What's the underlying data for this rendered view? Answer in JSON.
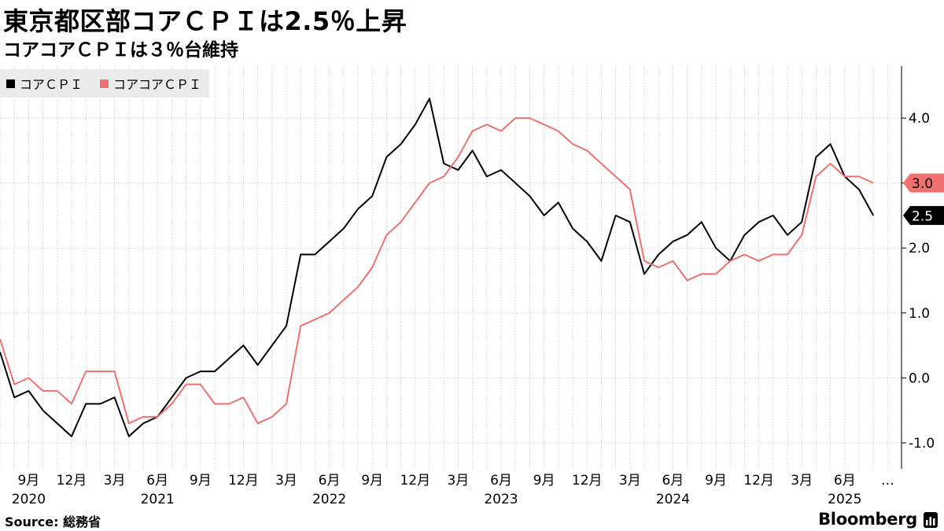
{
  "title": "東京都区部コアＣＰＩは2.5％上昇",
  "subtitle": "コアコアＣＰＩは３％台維持",
  "source_label": "Source:",
  "source_text": "総務省",
  "brand": "Bloomberg",
  "colors": {
    "core": "#000000",
    "corecore": "#f07070",
    "grid": "#c8c8c8",
    "legend_bg": "#ebebeb"
  },
  "chart_data": {
    "type": "line",
    "title": "",
    "x_label": "",
    "y_label": "",
    "x_start": "2020-07",
    "ylim": [
      -1.4,
      4.8
    ],
    "y_ticks": [
      "4.0",
      "3.0",
      "2.0",
      "1.0",
      "0.0",
      "-1.0"
    ],
    "y_tick_values": [
      4,
      3,
      2,
      1,
      0,
      -1
    ],
    "x_tick_labels": [
      "9月",
      "12月",
      "3月",
      "6月",
      "9月",
      "12月",
      "3月",
      "6月",
      "9月",
      "12月",
      "3月",
      "6月",
      "9月",
      "12月",
      "3月",
      "6月",
      "9月",
      "12月",
      "3月",
      "6月",
      "…"
    ],
    "x_tick_months": [
      "2020-09",
      "2020-12",
      "2021-03",
      "2021-06",
      "2021-09",
      "2021-12",
      "2022-03",
      "2022-06",
      "2022-09",
      "2022-12",
      "2023-03",
      "2023-06",
      "2023-09",
      "2023-12",
      "2024-03",
      "2024-06",
      "2024-09",
      "2024-12",
      "2025-03",
      "2025-06",
      "2025-09"
    ],
    "year_labels": [
      "2020",
      "2021",
      "2022",
      "2023",
      "2024",
      "2025"
    ],
    "year_months": [
      "2020-09",
      "2021-06",
      "2022-06",
      "2023-06",
      "2024-06",
      "2025-06"
    ],
    "grid": true,
    "legend_position": "top-left",
    "series": [
      {
        "name": "コアＣＰＩ",
        "color": "#000000",
        "last_value_label": "2.5",
        "values": [
          0.4,
          -0.3,
          -0.2,
          -0.5,
          -0.7,
          -0.9,
          -0.4,
          -0.4,
          -0.3,
          -0.9,
          -0.7,
          -0.6,
          -0.3,
          0.0,
          0.1,
          0.1,
          0.3,
          0.5,
          0.2,
          0.5,
          0.8,
          1.9,
          1.9,
          2.1,
          2.3,
          2.6,
          2.8,
          3.4,
          3.6,
          3.9,
          4.3,
          3.3,
          3.2,
          3.5,
          3.1,
          3.2,
          3.0,
          2.8,
          2.5,
          2.7,
          2.3,
          2.1,
          1.8,
          2.5,
          2.4,
          1.6,
          1.9,
          2.1,
          2.2,
          2.4,
          2.0,
          1.8,
          2.2,
          2.4,
          2.5,
          2.2,
          2.4,
          3.4,
          3.6,
          3.1,
          2.9,
          2.5
        ]
      },
      {
        "name": "コアコアＣＰＩ",
        "color": "#f07070",
        "last_value_label": "3.0",
        "values": [
          0.6,
          -0.1,
          0.0,
          -0.2,
          -0.2,
          -0.4,
          0.1,
          0.1,
          0.1,
          -0.7,
          -0.6,
          -0.6,
          -0.4,
          -0.1,
          -0.1,
          -0.4,
          -0.4,
          -0.3,
          -0.7,
          -0.6,
          -0.4,
          0.8,
          0.9,
          1.0,
          1.2,
          1.4,
          1.7,
          2.2,
          2.4,
          2.7,
          3.0,
          3.1,
          3.4,
          3.8,
          3.9,
          3.8,
          4.0,
          4.0,
          3.9,
          3.8,
          3.6,
          3.5,
          3.3,
          3.1,
          2.9,
          1.8,
          1.7,
          1.8,
          1.5,
          1.6,
          1.6,
          1.8,
          1.9,
          1.8,
          1.9,
          1.9,
          2.2,
          3.1,
          3.3,
          3.1,
          3.1,
          3.0
        ]
      }
    ]
  }
}
